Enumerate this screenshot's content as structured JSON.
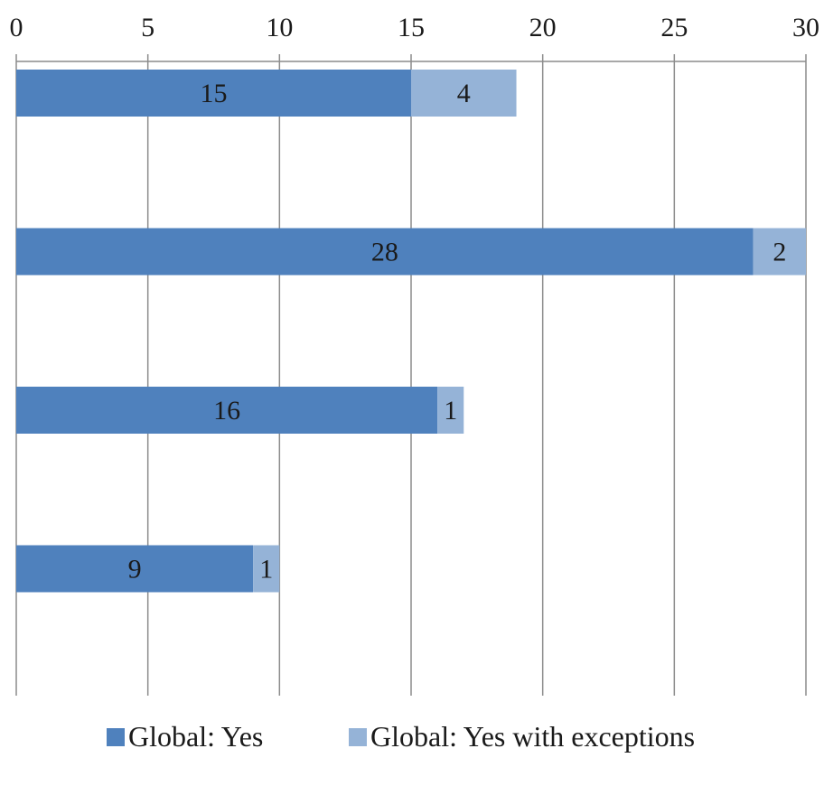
{
  "chart_data": {
    "type": "bar",
    "orientation": "horizontal",
    "stacked": true,
    "title": "",
    "xlabel": "",
    "ylabel": "",
    "categories": [
      "",
      "",
      "",
      ""
    ],
    "series": [
      {
        "name": "Global: Yes",
        "values": [
          15,
          28,
          16,
          9
        ],
        "color": "#4f81bd"
      },
      {
        "name": "Global: Yes with exceptions",
        "values": [
          4,
          2,
          1,
          1
        ],
        "color": "#95b3d7"
      }
    ],
    "xlim": [
      0,
      30
    ],
    "xticks": [
      "0",
      "5",
      "10",
      "15",
      "20",
      "25",
      "30"
    ],
    "x_axis_position": "top",
    "grid": true,
    "legend_position": "bottom",
    "data_labels": true
  }
}
